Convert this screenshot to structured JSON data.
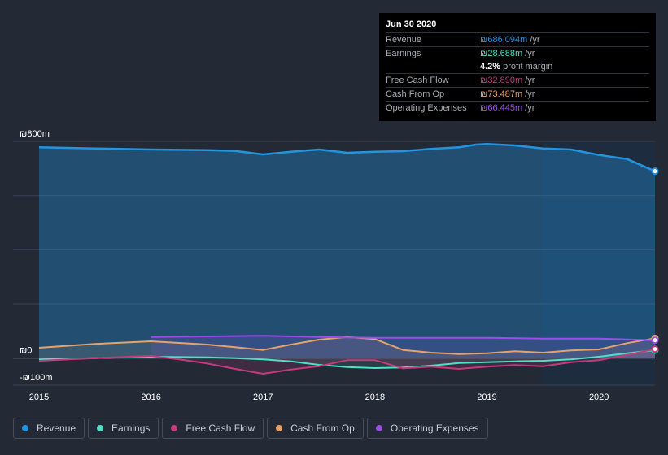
{
  "tooltip": {
    "date": "Jun 30 2020",
    "rows": [
      {
        "label": "Revenue",
        "value": "₪686.094m",
        "suffix": " /yr",
        "color": "#2394df"
      },
      {
        "label": "Earnings",
        "value": "₪28.688m",
        "suffix": " /yr",
        "color": "#4fe0c8"
      },
      {
        "label": "",
        "value": "4.2%",
        "suffix": " profit margin",
        "color": "#ffffff"
      },
      {
        "label": "Free Cash Flow",
        "value": "₪32.890m",
        "suffix": " /yr",
        "color": "#c53a7a"
      },
      {
        "label": "Cash From Op",
        "value": "₪73.487m",
        "suffix": " /yr",
        "color": "#e6a26a"
      },
      {
        "label": "Operating Expenses",
        "value": "₪66.445m",
        "suffix": " /yr",
        "color": "#9b4fe8"
      }
    ]
  },
  "legend": [
    {
      "label": "Revenue",
      "color": "#2394df"
    },
    {
      "label": "Earnings",
      "color": "#4fe0c8"
    },
    {
      "label": "Free Cash Flow",
      "color": "#c53a7a"
    },
    {
      "label": "Cash From Op",
      "color": "#e6a26a"
    },
    {
      "label": "Operating Expenses",
      "color": "#9b4fe8"
    }
  ],
  "chart_data": {
    "type": "line",
    "title": "",
    "currency": "₪",
    "y_tick_labels": [
      "₪800m",
      "₪0",
      "-₪100m"
    ],
    "x_tick_labels": [
      "2015",
      "2016",
      "2017",
      "2018",
      "2019",
      "2020"
    ],
    "ylim": [
      -100,
      800
    ],
    "xlim": [
      2015.0,
      2020.5
    ],
    "series": [
      {
        "name": "Revenue",
        "color": "#2394df",
        "x": [
          2015.0,
          2015.5,
          2016.0,
          2016.5,
          2016.75,
          2017.0,
          2017.25,
          2017.5,
          2017.75,
          2018.0,
          2018.25,
          2018.5,
          2018.75,
          2018.9,
          2019.0,
          2019.25,
          2019.5,
          2019.75,
          2020.0,
          2020.25,
          2020.5
        ],
        "values": [
          778,
          774,
          770,
          768,
          765,
          752,
          762,
          770,
          758,
          762,
          764,
          772,
          778,
          788,
          790,
          785,
          774,
          770,
          750,
          735,
          690
        ]
      },
      {
        "name": "Earnings",
        "color": "#4fe0c8",
        "x": [
          2015.0,
          2015.5,
          2016.0,
          2016.5,
          2016.75,
          2017.0,
          2017.25,
          2017.5,
          2017.75,
          2018.0,
          2018.25,
          2018.5,
          2018.75,
          2019.0,
          2019.25,
          2019.5,
          2019.75,
          2020.0,
          2020.25,
          2020.5
        ],
        "values": [
          -5,
          0,
          5,
          3,
          0,
          -5,
          -12,
          -25,
          -33,
          -37,
          -35,
          -28,
          -18,
          -15,
          -12,
          -10,
          -5,
          5,
          18,
          29
        ]
      },
      {
        "name": "Free Cash Flow",
        "color": "#c53a7a",
        "x": [
          2015.0,
          2015.5,
          2016.0,
          2016.25,
          2016.5,
          2016.75,
          2017.0,
          2017.25,
          2017.5,
          2017.75,
          2018.0,
          2018.25,
          2018.5,
          2018.75,
          2019.0,
          2019.25,
          2019.5,
          2019.75,
          2020.0,
          2020.25,
          2020.5
        ],
        "values": [
          -10,
          0,
          8,
          -5,
          -20,
          -40,
          -58,
          -42,
          -30,
          -8,
          -8,
          -38,
          -32,
          -40,
          -32,
          -26,
          -30,
          -15,
          -8,
          12,
          33
        ]
      },
      {
        "name": "Cash From Op",
        "color": "#e6a26a",
        "x": [
          2015.0,
          2015.5,
          2016.0,
          2016.5,
          2016.75,
          2017.0,
          2017.25,
          2017.5,
          2017.75,
          2018.0,
          2018.25,
          2018.5,
          2018.75,
          2019.0,
          2019.25,
          2019.5,
          2019.75,
          2020.0,
          2020.25,
          2020.5
        ],
        "values": [
          38,
          52,
          62,
          50,
          40,
          30,
          50,
          68,
          78,
          70,
          30,
          20,
          15,
          18,
          25,
          20,
          28,
          32,
          55,
          73
        ]
      },
      {
        "name": "Operating Expenses",
        "color": "#9b4fe8",
        "x": [
          2016.0,
          2016.5,
          2017.0,
          2017.5,
          2018.0,
          2018.5,
          2019.0,
          2019.5,
          2020.0,
          2020.5
        ],
        "values": [
          78,
          80,
          82,
          78,
          75,
          75,
          75,
          72,
          72,
          66
        ]
      }
    ]
  }
}
